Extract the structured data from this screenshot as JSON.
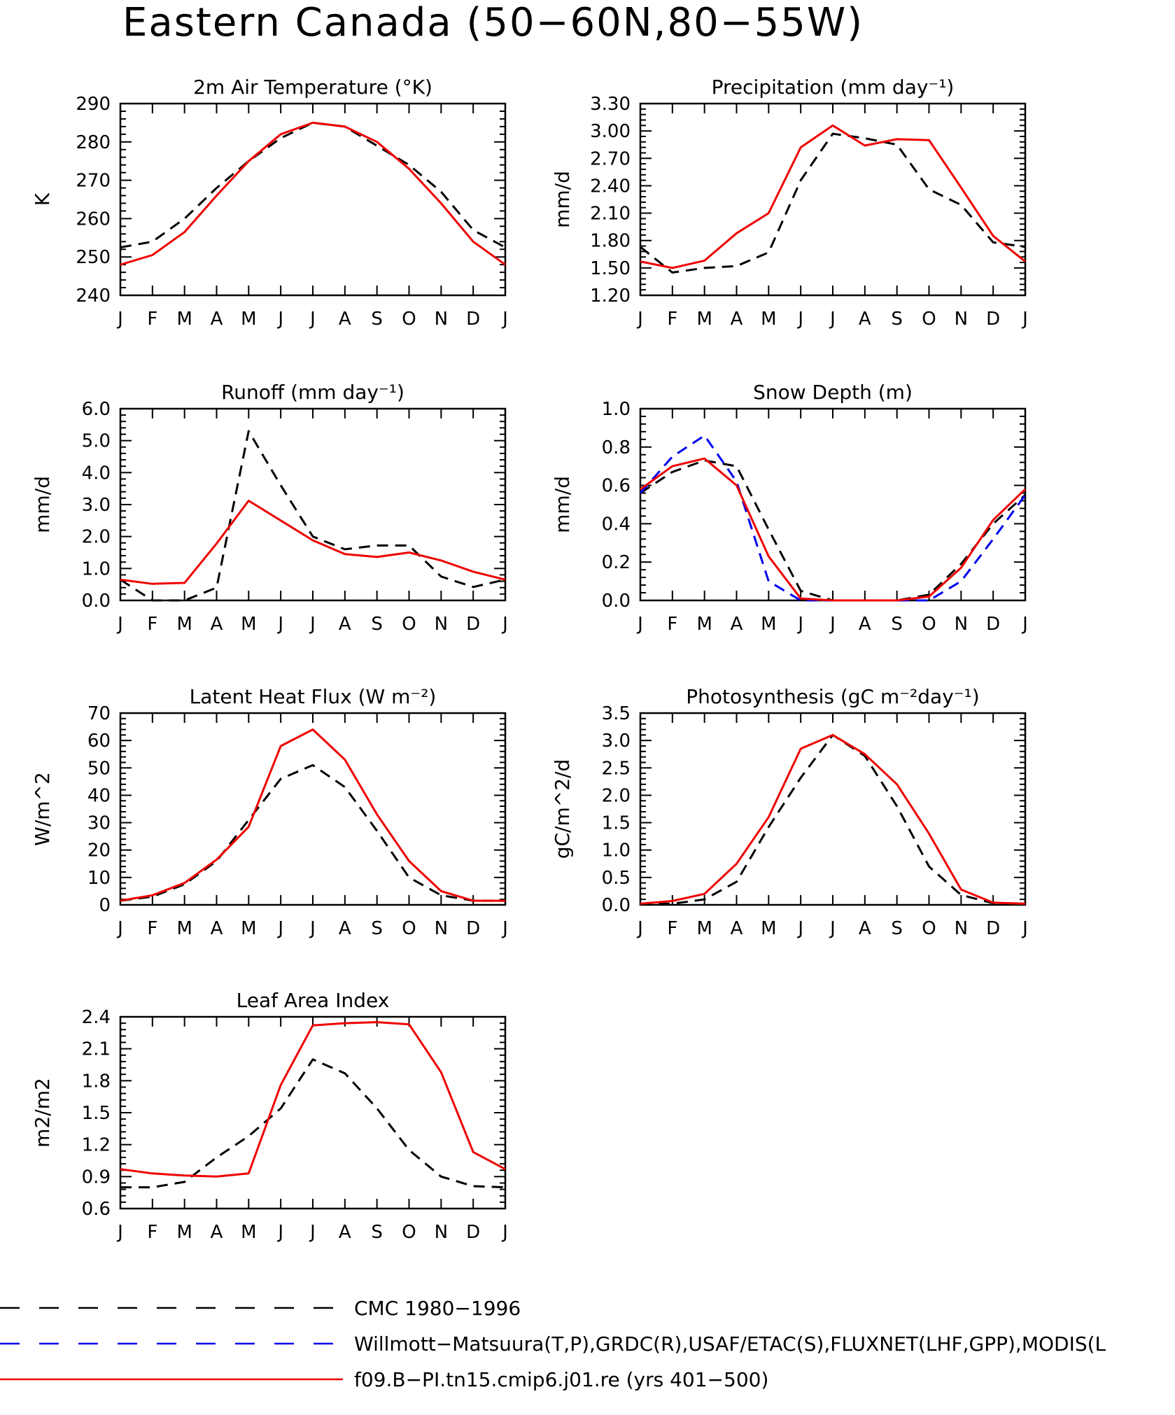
{
  "title": "Eastern Canada (50−60N,80−55W)",
  "colors": {
    "cmc": "#000000",
    "obs": "#0000ee",
    "model": "#ee0000"
  },
  "legend": [
    {
      "label": "CMC 1980−1996",
      "color": "#000000",
      "style": "dashed"
    },
    {
      "label": "Willmott−Matsuura(T,P),GRDC(R),USAF/ETAC(S),FLUXNET(LHF,GPP),MODIS(L",
      "color": "#0000ee",
      "style": "dashed"
    },
    {
      "label": "f09.B−PI.tn15.cmip6.j01.re (yrs 401−500)",
      "color": "#ee0000",
      "style": "solid"
    }
  ],
  "chart_data": [
    {
      "type": "line",
      "title": "2m Air Temperature (°K)",
      "ylabel": "K",
      "categories": [
        "J",
        "F",
        "M",
        "A",
        "M",
        "J",
        "J",
        "A",
        "S",
        "O",
        "N",
        "D",
        "J"
      ],
      "ylim": [
        240,
        290
      ],
      "yticks": [
        240,
        250,
        260,
        270,
        280,
        290
      ],
      "ytick_labels": [
        "240",
        "250",
        "260",
        "270",
        "280",
        "290"
      ],
      "series": [
        {
          "name": "CMC 1980−1996",
          "style": "dashed",
          "color": "#000000",
          "values": [
            252.5,
            254,
            260,
            268,
            275,
            281,
            285,
            284,
            279,
            274,
            267,
            257,
            252.5
          ]
        },
        {
          "name": "f09.B−PI.tn15.cmip6.j01.re (yrs 401−500)",
          "style": "solid",
          "color": "#ee0000",
          "values": [
            248,
            250.5,
            256.5,
            266,
            275,
            282,
            285,
            284,
            280,
            273,
            264,
            254,
            248
          ]
        }
      ]
    },
    {
      "type": "line",
      "title": "Precipitation (mm day⁻¹)",
      "ylabel": "mm/d",
      "categories": [
        "J",
        "F",
        "M",
        "A",
        "M",
        "J",
        "J",
        "A",
        "S",
        "O",
        "N",
        "D",
        "J"
      ],
      "ylim": [
        1.2,
        3.3
      ],
      "yticks": [
        1.2,
        1.5,
        1.8,
        2.1,
        2.4,
        2.7,
        3.0,
        3.3
      ],
      "ytick_labels": [
        "1.20",
        "1.50",
        "1.80",
        "2.10",
        "2.40",
        "2.70",
        "3.00",
        "3.30"
      ],
      "series": [
        {
          "name": "CMC 1980−1996",
          "style": "dashed",
          "color": "#000000",
          "values": [
            1.73,
            1.45,
            1.5,
            1.52,
            1.67,
            2.46,
            2.97,
            2.92,
            2.85,
            2.36,
            2.19,
            1.78,
            1.73
          ]
        },
        {
          "name": "f09.B−PI.tn15.cmip6.j01.re (yrs 401−500)",
          "style": "solid",
          "color": "#ee0000",
          "values": [
            1.57,
            1.5,
            1.58,
            1.88,
            2.1,
            2.82,
            3.06,
            2.84,
            2.91,
            2.9,
            2.38,
            1.85,
            1.57
          ]
        }
      ]
    },
    {
      "type": "line",
      "title": "Runoff (mm day⁻¹)",
      "ylabel": "mm/d",
      "categories": [
        "J",
        "F",
        "M",
        "A",
        "M",
        "J",
        "J",
        "A",
        "S",
        "O",
        "N",
        "D",
        "J"
      ],
      "ylim": [
        0,
        6
      ],
      "yticks": [
        0,
        1,
        2,
        3,
        4,
        5,
        6
      ],
      "ytick_labels": [
        "0.0",
        "1.0",
        "2.0",
        "3.0",
        "4.0",
        "5.0",
        "6.0"
      ],
      "series": [
        {
          "name": "CMC 1980−1996",
          "style": "dashed",
          "color": "#000000",
          "values": [
            0.65,
            0.0,
            0.0,
            0.4,
            5.3,
            3.6,
            2.0,
            1.6,
            1.72,
            1.72,
            0.75,
            0.42,
            0.65
          ]
        },
        {
          "name": "f09.B−PI.tn15.cmip6.j01.re (yrs 401−500)",
          "style": "solid",
          "color": "#ee0000",
          "values": [
            0.65,
            0.52,
            0.55,
            1.78,
            3.12,
            2.5,
            1.88,
            1.45,
            1.36,
            1.5,
            1.25,
            0.9,
            0.65
          ]
        }
      ]
    },
    {
      "type": "line",
      "title": "Snow Depth (m)",
      "ylabel": "mm/d",
      "categories": [
        "J",
        "F",
        "M",
        "A",
        "M",
        "J",
        "J",
        "A",
        "S",
        "O",
        "N",
        "D",
        "J"
      ],
      "ylim": [
        0,
        1
      ],
      "yticks": [
        0,
        0.2,
        0.4,
        0.6,
        0.8,
        1.0
      ],
      "ytick_labels": [
        "0.0",
        "0.2",
        "0.4",
        "0.6",
        "0.8",
        "1.0"
      ],
      "series": [
        {
          "name": "CMC 1980−1996",
          "style": "dashed",
          "color": "#000000",
          "values": [
            0.56,
            0.67,
            0.73,
            0.7,
            0.37,
            0.05,
            0.0,
            0.0,
            0.0,
            0.03,
            0.19,
            0.4,
            0.55
          ]
        },
        {
          "name": "Willmott−Matsuura(T,P),GRDC(R),USAF/ETAC(S),FLUXNET(LHF,GPP),MODIS(L",
          "style": "dashed",
          "color": "#0000ee",
          "values": [
            0.56,
            0.75,
            0.86,
            0.62,
            0.1,
            0.0,
            0.0,
            0.0,
            0.0,
            0.0,
            0.1,
            0.32,
            0.55
          ]
        },
        {
          "name": "f09.B−PI.tn15.cmip6.j01.re (yrs 401−500)",
          "style": "solid",
          "color": "#ee0000",
          "values": [
            0.58,
            0.7,
            0.74,
            0.6,
            0.23,
            0.01,
            0.0,
            0.0,
            0.0,
            0.02,
            0.17,
            0.42,
            0.58
          ]
        }
      ]
    },
    {
      "type": "line",
      "title": "Latent Heat Flux (W m⁻²)",
      "ylabel": "W/m^2",
      "categories": [
        "J",
        "F",
        "M",
        "A",
        "M",
        "J",
        "J",
        "A",
        "S",
        "O",
        "N",
        "D",
        "J"
      ],
      "ylim": [
        0,
        70
      ],
      "yticks": [
        0,
        10,
        20,
        30,
        40,
        50,
        60,
        70
      ],
      "ytick_labels": [
        "0",
        "10",
        "20",
        "30",
        "40",
        "50",
        "60",
        "70"
      ],
      "series": [
        {
          "name": "CMC 1980−1996",
          "style": "dashed",
          "color": "#000000",
          "values": [
            1.5,
            3,
            7.5,
            16,
            31,
            46,
            51,
            43,
            27,
            10,
            3.5,
            1.5,
            1.5
          ]
        },
        {
          "name": "f09.B−PI.tn15.cmip6.j01.re (yrs 401−500)",
          "style": "solid",
          "color": "#ee0000",
          "values": [
            1.5,
            3.5,
            8,
            16.5,
            28.5,
            58,
            64,
            53,
            33,
            16,
            5,
            1.5,
            1.5
          ]
        }
      ]
    },
    {
      "type": "line",
      "title": "Photosynthesis (gC m⁻²day⁻¹)",
      "ylabel": "gC/m^2/d",
      "categories": [
        "J",
        "F",
        "M",
        "A",
        "M",
        "J",
        "J",
        "A",
        "S",
        "O",
        "N",
        "D",
        "J"
      ],
      "ylim": [
        0,
        3.5
      ],
      "yticks": [
        0,
        0.5,
        1.0,
        1.5,
        2.0,
        2.5,
        3.0,
        3.5
      ],
      "ytick_labels": [
        "0.0",
        "0.5",
        "1.0",
        "1.5",
        "2.0",
        "2.5",
        "3.0",
        "3.5"
      ],
      "series": [
        {
          "name": "CMC 1980−1996",
          "style": "dashed",
          "color": "#000000",
          "values": [
            0.02,
            0.02,
            0.1,
            0.42,
            1.42,
            2.32,
            3.1,
            2.72,
            1.8,
            0.7,
            0.18,
            0.03,
            0.02
          ]
        },
        {
          "name": "f09.B−PI.tn15.cmip6.j01.re (yrs 401−500)",
          "style": "solid",
          "color": "#ee0000",
          "values": [
            0.02,
            0.07,
            0.2,
            0.75,
            1.6,
            2.85,
            3.1,
            2.75,
            2.2,
            1.3,
            0.28,
            0.04,
            0.02
          ]
        }
      ]
    },
    {
      "type": "line",
      "title": "Leaf Area Index",
      "ylabel": "m2/m2",
      "categories": [
        "J",
        "F",
        "M",
        "A",
        "M",
        "J",
        "J",
        "A",
        "S",
        "O",
        "N",
        "D",
        "J"
      ],
      "ylim": [
        0.6,
        2.4
      ],
      "yticks": [
        0.6,
        0.9,
        1.2,
        1.5,
        1.8,
        2.1,
        2.4
      ],
      "ytick_labels": [
        "0.6",
        "0.9",
        "1.2",
        "1.5",
        "1.8",
        "2.1",
        "2.4"
      ],
      "series": [
        {
          "name": "CMC 1980−1996",
          "style": "dashed",
          "color": "#000000",
          "values": [
            0.8,
            0.8,
            0.85,
            1.08,
            1.28,
            1.54,
            2.0,
            1.87,
            1.54,
            1.15,
            0.9,
            0.81,
            0.8
          ]
        },
        {
          "name": "f09.B−PI.tn15.cmip6.j01.re (yrs 401−500)",
          "style": "solid",
          "color": "#ee0000",
          "values": [
            0.97,
            0.93,
            0.91,
            0.9,
            0.93,
            1.76,
            2.32,
            2.34,
            2.35,
            2.33,
            1.88,
            1.13,
            0.97
          ]
        }
      ]
    }
  ]
}
